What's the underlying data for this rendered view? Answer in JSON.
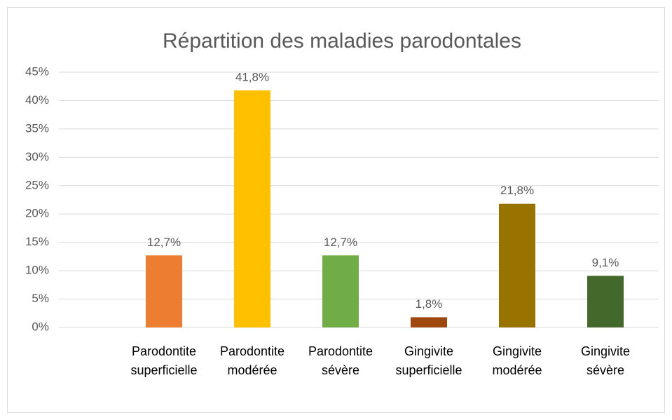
{
  "chart_data": {
    "type": "bar",
    "title": "Répartition des maladies parodontales",
    "categories": [
      "Parodontite superficielle",
      "Parodontite modérée",
      "Parodontite sévère",
      "Gingivite superficielle",
      "Gingivite modérée",
      "Gingivite sévère"
    ],
    "values": [
      12.7,
      41.8,
      12.7,
      1.8,
      21.8,
      9.1
    ],
    "value_labels": [
      "12,7%",
      "41,8%",
      "12,7%",
      "1,8%",
      "21,8%",
      "9,1%"
    ],
    "colors": [
      "#ED7D31",
      "#FFC000",
      "#70AD47",
      "#9E480E",
      "#997300",
      "#43682B"
    ],
    "ylim": [
      0,
      45
    ],
    "yticks": [
      {
        "value": 0,
        "label": "0%"
      },
      {
        "value": 5,
        "label": "5%"
      },
      {
        "value": 10,
        "label": "10%"
      },
      {
        "value": 15,
        "label": "15%"
      },
      {
        "value": 20,
        "label": "20%"
      },
      {
        "value": 25,
        "label": "25%"
      },
      {
        "value": 30,
        "label": "30%"
      },
      {
        "value": 35,
        "label": "35%"
      },
      {
        "value": 40,
        "label": "40%"
      },
      {
        "value": 45,
        "label": "45%"
      }
    ],
    "grid": true
  }
}
